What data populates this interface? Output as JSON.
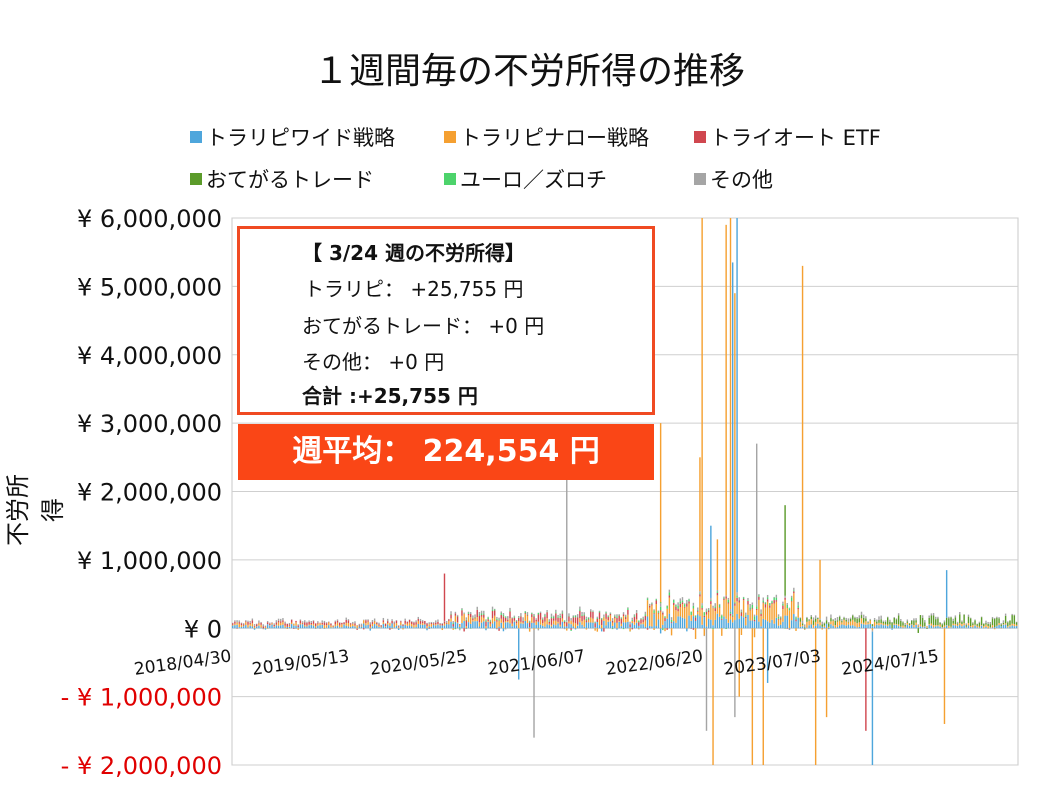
{
  "title": "１週間毎の不労所得の推移",
  "legend": [
    {
      "label": "トラリピワイド戦略",
      "color": "#4ea6dc",
      "key": "wide"
    },
    {
      "label": "トラリピナロー戦略",
      "color": "#f5a031",
      "key": "narrow"
    },
    {
      "label": "トライオート ETF",
      "color": "#d0474f",
      "key": "etf"
    },
    {
      "label": "おてがるトレード",
      "color": "#5b9b2a",
      "key": "otegaru"
    },
    {
      "label": "ユーロ／ズロチ",
      "color": "#4dd36b",
      "key": "eurpln"
    },
    {
      "label": "その他",
      "color": "#a5a5a5",
      "key": "other"
    }
  ],
  "info_box": {
    "heading": "【 3/24 週の不労所得】",
    "line1": "トラリピ： +25,755 円",
    "line2": "おてがるトレード： +0 円",
    "line3": "その他： +0 円",
    "total": "合計 :+25,755 円"
  },
  "average_banner": "週平均： 224,554 円",
  "chart_data": {
    "type": "bar",
    "stacked": true,
    "title": "１週間毎の不労所得の推移",
    "xlabel": "",
    "ylabel": "不労所得",
    "ylim": [
      -2000000,
      6000000
    ],
    "yticks": [
      {
        "value": 6000000,
        "label": "¥ 6,000,000"
      },
      {
        "value": 5000000,
        "label": "¥ 5,000,000"
      },
      {
        "value": 4000000,
        "label": "¥ 4,000,000"
      },
      {
        "value": 3000000,
        "label": "¥ 3,000,000"
      },
      {
        "value": 2000000,
        "label": "¥ 2,000,000"
      },
      {
        "value": 1000000,
        "label": "¥ 1,000,000"
      },
      {
        "value": 0,
        "label": "¥ 0"
      },
      {
        "value": -1000000,
        "label": "- ¥ 1,000,000"
      },
      {
        "value": -2000000,
        "label": "- ¥ 2,000,000"
      }
    ],
    "negative_label_color": "#e00000",
    "week_count": 360,
    "xticks": [
      {
        "week": 0,
        "label": "2018/04/30"
      },
      {
        "week": 54,
        "label": "2019/05/13"
      },
      {
        "week": 108,
        "label": "2020/05/25"
      },
      {
        "week": 162,
        "label": "2021/06/07"
      },
      {
        "week": 216,
        "label": "2022/06/20"
      },
      {
        "week": 270,
        "label": "2023/07/03"
      },
      {
        "week": 324,
        "label": "2024/07/15"
      }
    ],
    "typical_levels": [
      {
        "from": 0,
        "to": 100,
        "wide": 40000,
        "narrow": 30000,
        "etf": 25000,
        "other": 20000
      },
      {
        "from": 100,
        "to": 190,
        "wide": 60000,
        "narrow": 60000,
        "etf": 60000,
        "eurpln": 15000,
        "other": 25000
      },
      {
        "from": 190,
        "to": 260,
        "wide": 120000,
        "narrow": 180000,
        "etf": 30000,
        "eurpln": 30000,
        "other": 30000
      },
      {
        "from": 260,
        "to": 300,
        "wide": 40000,
        "narrow": 50000,
        "otegaru": 40000,
        "other": 30000
      },
      {
        "from": 300,
        "to": 360,
        "wide": 30000,
        "narrow": 20000,
        "otegaru": 80000,
        "other": 20000
      }
    ],
    "spikes": [
      {
        "series": "etf",
        "week": 97,
        "value": 800000
      },
      {
        "series": "blue_neg",
        "week": 131,
        "value": -750000
      },
      {
        "series": "other",
        "week": 138,
        "value": -1600000
      },
      {
        "series": "other",
        "week": 153,
        "value": 2200000
      },
      {
        "series": "narrow",
        "week": 196,
        "value": 3000000
      },
      {
        "series": "eurpln",
        "week": 196,
        "value": 380000
      },
      {
        "series": "narrow",
        "week": 214,
        "value": 2500000
      },
      {
        "series": "narrow",
        "week": 215,
        "value": 6000000
      },
      {
        "series": "other",
        "week": 217,
        "value": -1500000
      },
      {
        "series": "wide",
        "week": 219,
        "value": 1500000
      },
      {
        "series": "narrow",
        "week": 220,
        "value": -2000000
      },
      {
        "series": "narrow",
        "week": 222,
        "value": 1300000
      },
      {
        "series": "narrow",
        "week": 226,
        "value": 5900000
      },
      {
        "series": "narrow",
        "week": 228,
        "value": 6000000
      },
      {
        "series": "wide",
        "week": 229,
        "value": 5350000
      },
      {
        "series": "narrow",
        "week": 230,
        "value": 4900000
      },
      {
        "series": "other",
        "week": 230,
        "value": -1300000
      },
      {
        "series": "wide",
        "week": 231,
        "value": 6000000
      },
      {
        "series": "narrow",
        "week": 232,
        "value": -1000000
      },
      {
        "series": "narrow",
        "week": 238,
        "value": -2000000
      },
      {
        "series": "other",
        "week": 240,
        "value": 2700000
      },
      {
        "series": "narrow",
        "week": 243,
        "value": -2000000
      },
      {
        "series": "wide",
        "week": 245,
        "value": -800000
      },
      {
        "series": "otegaru",
        "week": 253,
        "value": 1800000
      },
      {
        "series": "narrow",
        "week": 261,
        "value": 5300000
      },
      {
        "series": "narrow",
        "week": 267,
        "value": -2000000
      },
      {
        "series": "narrow",
        "week": 269,
        "value": 1000000
      },
      {
        "series": "narrow",
        "week": 272,
        "value": -1300000
      },
      {
        "series": "etf",
        "week": 290,
        "value": -1500000
      },
      {
        "series": "wide",
        "week": 293,
        "value": -2000000
      },
      {
        "series": "narrow",
        "week": 326,
        "value": -1400000
      },
      {
        "series": "wide",
        "week": 327,
        "value": 850000
      }
    ]
  }
}
